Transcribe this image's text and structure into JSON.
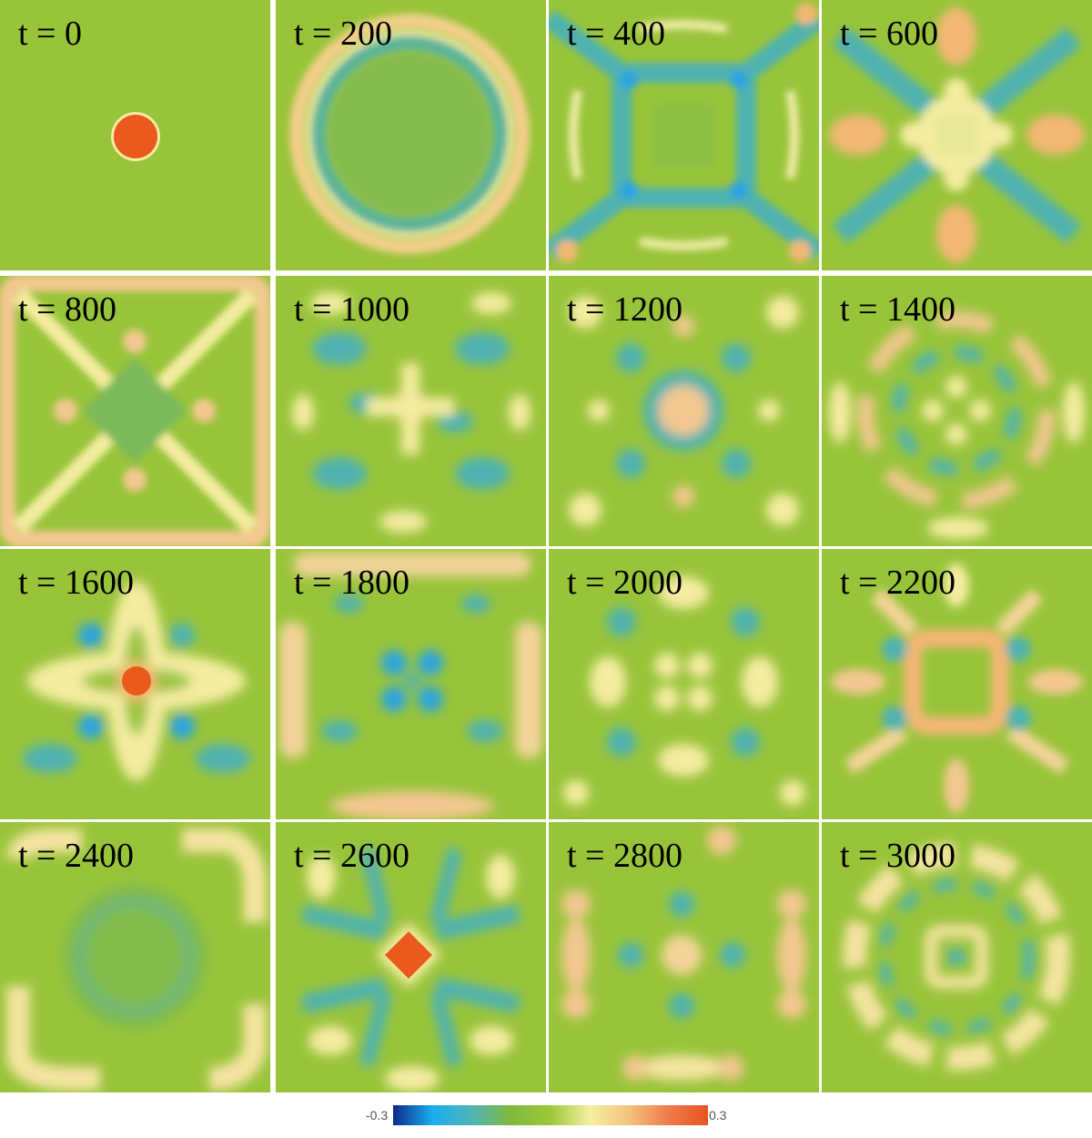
{
  "panels": [
    {
      "label": "t = 0"
    },
    {
      "label": "t = 200"
    },
    {
      "label": "t = 400"
    },
    {
      "label": "t = 600"
    },
    {
      "label": "t = 800"
    },
    {
      "label": "t = 1000"
    },
    {
      "label": "t = 1200"
    },
    {
      "label": "t = 1400"
    },
    {
      "label": "t = 1600"
    },
    {
      "label": "t = 1800"
    },
    {
      "label": "t = 2000"
    },
    {
      "label": "t = 2200"
    },
    {
      "label": "t = 2400"
    },
    {
      "label": "t = 2600"
    },
    {
      "label": "t = 2800"
    },
    {
      "label": "t = 3000"
    }
  ],
  "colorbar": {
    "min_label": "-0.3",
    "max_label": "0.3",
    "colors": [
      "#0b2a8a",
      "#1aaef0",
      "#4fb4b4",
      "#7fba3c",
      "#9dc83a",
      "#f5efa0",
      "#f3c27c",
      "#f07a4a",
      "#e8541e"
    ]
  },
  "colors": {
    "background": "#98c43a",
    "peak": "#ea5a1c",
    "warm": "#f3b774",
    "pale": "#f4eca0",
    "cool": "#4fb2b0",
    "trough": "#2aa4e0"
  }
}
